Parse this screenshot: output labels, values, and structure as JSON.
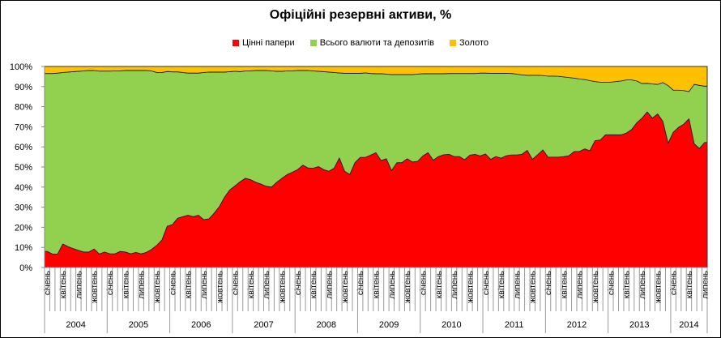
{
  "chart_data": {
    "type": "area",
    "stacked": "percent",
    "title": "Офіційні резервні активи, %",
    "legend_position": "top",
    "grid": false,
    "ylim": [
      0,
      100
    ],
    "y_ticks": [
      "0%",
      "10%",
      "20%",
      "30%",
      "40%",
      "50%",
      "60%",
      "70%",
      "80%",
      "90%",
      "100%"
    ],
    "years": [
      "2004",
      "2005",
      "2006",
      "2007",
      "2008",
      "2009",
      "2010",
      "2011",
      "2012",
      "2013",
      "2014"
    ],
    "month_tick_labels": [
      "січень",
      "",
      "",
      "квітень",
      "",
      "",
      "липень",
      "",
      "",
      "жовтень",
      "",
      ""
    ],
    "months_count": 127,
    "series": [
      {
        "name": "Цінні папери",
        "color": "#FF0000",
        "values": [
          8,
          6.7,
          6.7,
          11.7,
          10.4,
          9.4,
          8.5,
          7.7,
          7.7,
          9.2,
          6.7,
          7.7,
          6.8,
          6.8,
          8,
          7.7,
          6.8,
          7.5,
          6.8,
          7.5,
          9,
          11,
          13.7,
          20.5,
          21.3,
          24.5,
          25.3,
          26,
          25.3,
          26,
          23.8,
          24.2,
          27,
          30.3,
          35,
          38.6,
          40.6,
          42.7,
          44.4,
          43.7,
          42.4,
          41.5,
          40.4,
          40,
          42.4,
          44.4,
          46.2,
          47.4,
          48.7,
          50.9,
          49.5,
          49.4,
          50.2,
          48.7,
          47.9,
          49.4,
          54.5,
          47.9,
          46.3,
          52.2,
          54.8,
          54.8,
          55.9,
          57.1,
          53.2,
          54.1,
          48.2,
          52.1,
          52.2,
          54.1,
          52.5,
          52.8,
          55.5,
          57.1,
          53.4,
          55.2,
          56.1,
          56.3,
          55.2,
          55.2,
          53.6,
          55.9,
          56.3,
          55.5,
          56.5,
          53.8,
          55.2,
          54.4,
          55.6,
          56,
          56,
          56.3,
          58.3,
          53.8,
          56.1,
          58.5,
          54.9,
          54.9,
          54.9,
          55.2,
          55.6,
          57.7,
          57.7,
          59,
          58.1,
          63.1,
          63.4,
          66,
          66,
          66,
          66,
          66.9,
          68.6,
          72,
          74.3,
          77.4,
          74.3,
          76.4,
          72.7,
          61.9,
          67.3,
          69.7,
          71.3,
          74,
          61.6,
          59.2,
          62.2
        ]
      },
      {
        "name": "Всього валюти та депозитів",
        "color": "#92D050",
        "values": [
          88.5,
          89.8,
          90.0,
          85.3,
          86.8,
          88.0,
          89.1,
          90.1,
          90.3,
          88.8,
          91.0,
          90.0,
          90.9,
          91.0,
          89.8,
          90.3,
          91.2,
          90.5,
          91.2,
          90.5,
          88.8,
          86.0,
          83.3,
          77.0,
          76.0,
          72.8,
          71.7,
          70.7,
          71.4,
          70.7,
          73.2,
          73.0,
          70.2,
          66.9,
          62.2,
          58.8,
          57.0,
          54.7,
          53.4,
          54.1,
          55.6,
          56.5,
          57.6,
          57.8,
          55.2,
          53.2,
          51.6,
          50.4,
          49.3,
          47.1,
          48.5,
          48.4,
          47.4,
          48.7,
          49.3,
          47.6,
          42.3,
          48.7,
          50.3,
          44.4,
          41.8,
          42.0,
          40.6,
          39.3,
          43.2,
          42.1,
          47.8,
          43.9,
          43.8,
          41.9,
          43.5,
          43.4,
          40.9,
          39.3,
          43.0,
          41.2,
          40.3,
          40.2,
          41.3,
          41.3,
          42.9,
          40.6,
          40.2,
          41.2,
          40.2,
          42.8,
          41.4,
          42.2,
          41.0,
          40.5,
          40.2,
          39.5,
          37.3,
          41.8,
          39.5,
          37.0,
          40.3,
          40.3,
          40.2,
          39.6,
          38.9,
          36.5,
          36.1,
          34.5,
          34.9,
          29.4,
          28.8,
          26.2,
          26.2,
          26.5,
          26.8,
          26.4,
          24.7,
          20.8,
          17.2,
          14.2,
          17.0,
          14.7,
          19.3,
          28.6,
          20.9,
          18.5,
          16.7,
          13.5,
          29.5,
          31.4,
          28.0
        ]
      },
      {
        "name": "Золото",
        "color": "#FFC000",
        "values": [
          3.5,
          3.5,
          3.3,
          3.0,
          2.8,
          2.6,
          2.4,
          2.2,
          2.0,
          2.0,
          2.3,
          2.3,
          2.3,
          2.2,
          2.2,
          2.0,
          2.0,
          2.0,
          2.0,
          2.0,
          2.2,
          3.0,
          3.0,
          2.5,
          2.7,
          2.7,
          3.0,
          3.3,
          3.3,
          3.3,
          3.0,
          2.8,
          2.8,
          2.8,
          2.8,
          2.6,
          2.4,
          2.6,
          2.2,
          2.2,
          2,
          2,
          2,
          2.2,
          2.4,
          2.4,
          2.2,
          2.2,
          2,
          2,
          2,
          2.2,
          2.4,
          2.6,
          2.8,
          3,
          3.2,
          3.4,
          3.4,
          3.4,
          3.4,
          3.2,
          3.5,
          3.6,
          3.6,
          3.8,
          4,
          4,
          4,
          4,
          4,
          3.8,
          3.6,
          3.6,
          3.6,
          3.6,
          3.6,
          3.5,
          3.5,
          3.5,
          3.5,
          3.5,
          3.5,
          3.3,
          3.3,
          3.4,
          3.4,
          3.4,
          3.4,
          3.5,
          3.8,
          4.2,
          4.4,
          4.4,
          4.4,
          4.5,
          4.8,
          4.8,
          4.9,
          5.2,
          5.5,
          5.8,
          6.2,
          6.5,
          7,
          7.5,
          7.8,
          7.8,
          7.8,
          7.5,
          7.2,
          6.7,
          6.7,
          7.2,
          8.5,
          8.4,
          8.7,
          8.9,
          8.0,
          9.5,
          11.8,
          11.8,
          12,
          12.5,
          8.9,
          9.4,
          9.8
        ]
      }
    ]
  }
}
